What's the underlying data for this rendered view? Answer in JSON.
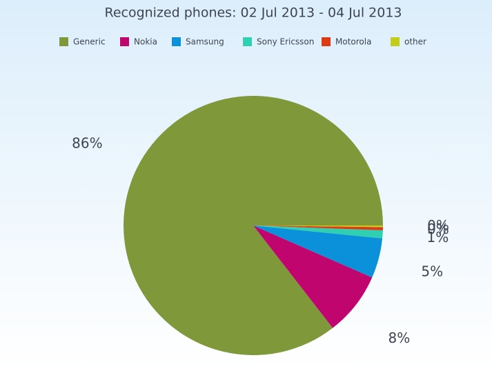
{
  "chart_data": {
    "type": "pie",
    "title": "Recognized phones: 02 Jul 2013 - 04 Jul 2013",
    "categories": [
      "Generic",
      "Nokia",
      "Samsung",
      "Sony Ericsson",
      "Motorola",
      "other"
    ],
    "values": [
      86,
      8,
      5,
      1,
      0.4,
      0.2
    ],
    "value_labels": [
      "86%",
      "8%",
      "5%",
      "1%",
      "0%",
      "0%"
    ],
    "colors": [
      "#7f993a",
      "#c0066e",
      "#0b91da",
      "#2fcfb2",
      "#dc3b14",
      "#c4cc1a"
    ],
    "legend": "top"
  }
}
